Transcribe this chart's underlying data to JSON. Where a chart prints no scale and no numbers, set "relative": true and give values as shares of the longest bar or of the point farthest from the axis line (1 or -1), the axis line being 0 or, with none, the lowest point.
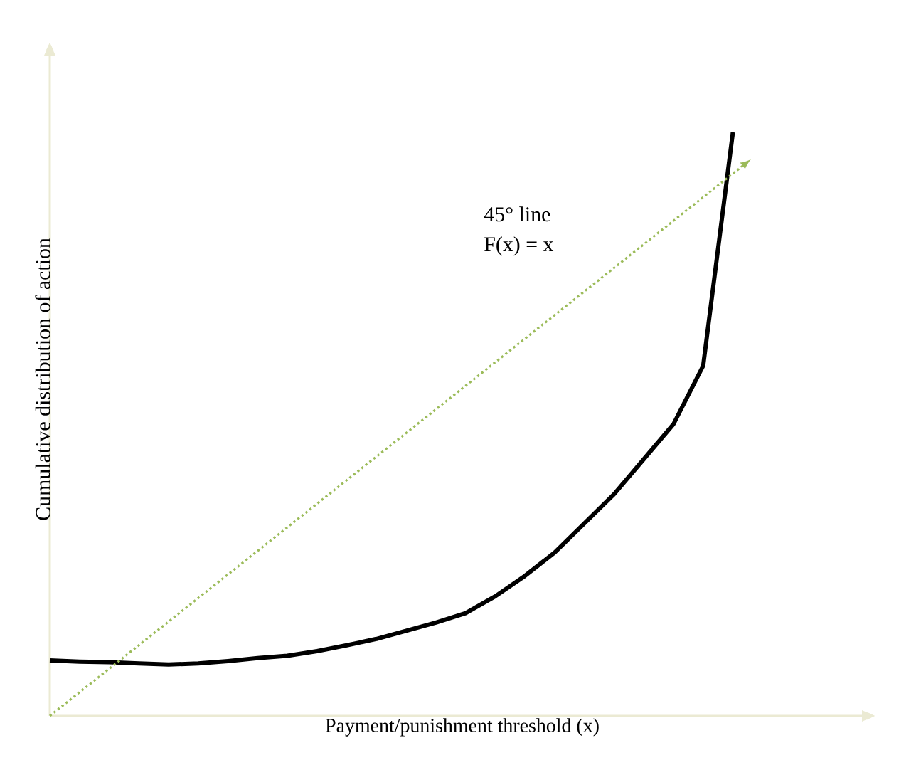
{
  "chart_data": {
    "type": "line",
    "relative": true,
    "xlabel": "Payment/punishment threshold (x)",
    "ylabel": "Cumulative distribution of action",
    "annotations": [
      "45° line",
      "F(x) = x"
    ],
    "categories": [
      null,
      null,
      null,
      null,
      null,
      null,
      null,
      null,
      null,
      null,
      null,
      null,
      null,
      null,
      null,
      null,
      null,
      null,
      null,
      null,
      null,
      null,
      null,
      null
    ],
    "series": [
      {
        "color": "#000000",
        "line_style": "solid",
        "values": [
          0.095,
          0.093,
          0.092,
          0.09,
          0.088,
          0.09,
          0.094,
          0.099,
          0.103,
          0.111,
          0.121,
          0.132,
          0.146,
          0.16,
          0.176,
          0.205,
          0.24,
          0.28,
          0.33,
          0.38,
          0.44,
          0.5,
          0.6,
          1.0
        ]
      }
    ]
  }
}
